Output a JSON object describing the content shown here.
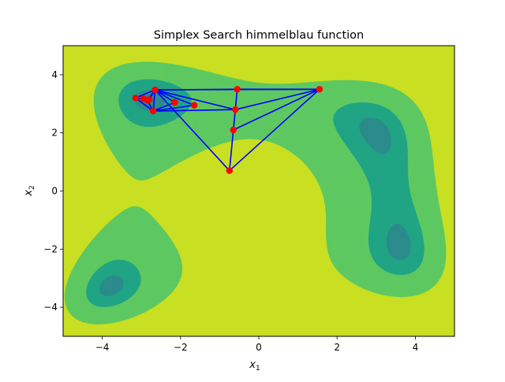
{
  "chart_data": {
    "type": "contour",
    "title": "Simplex Search himmelblau function",
    "xlabel": "x",
    "xlabel_sub": "1",
    "ylabel": "x",
    "ylabel_sub": "2",
    "xlim": [
      -5,
      5
    ],
    "ylim": [
      -5,
      5
    ],
    "xticks": [
      -4,
      -2,
      0,
      2,
      4
    ],
    "yticks": [
      -4,
      -2,
      0,
      2,
      4
    ],
    "grid": false,
    "colors": {
      "background_level": "#c8df22",
      "level_1": "#5ec962",
      "level_2": "#21a585",
      "level_3": "#2c8c8c",
      "path": "#0000ff",
      "points": "#ff0000"
    },
    "simplex_points": [
      {
        "x": 1.55,
        "y": 3.5
      },
      {
        "x": -0.55,
        "y": 3.5
      },
      {
        "x": -0.6,
        "y": 2.8
      },
      {
        "x": -0.65,
        "y": 2.1
      },
      {
        "x": -0.75,
        "y": 0.7
      },
      {
        "x": -2.65,
        "y": 3.48
      },
      {
        "x": -2.7,
        "y": 2.75
      },
      {
        "x": -1.65,
        "y": 2.95
      },
      {
        "x": -2.15,
        "y": 3.05
      },
      {
        "x": -3.15,
        "y": 3.2
      },
      {
        "x": -2.95,
        "y": 3.18
      },
      {
        "x": -2.85,
        "y": 3.12
      },
      {
        "x": -2.8,
        "y": 3.15
      }
    ],
    "simplex_edges": [
      [
        0,
        1
      ],
      [
        1,
        2
      ],
      [
        0,
        2
      ],
      [
        0,
        5
      ],
      [
        5,
        1
      ],
      [
        5,
        2
      ],
      [
        2,
        3
      ],
      [
        0,
        3
      ],
      [
        3,
        4
      ],
      [
        4,
        5
      ],
      [
        4,
        0
      ],
      [
        5,
        6
      ],
      [
        6,
        7
      ],
      [
        7,
        5
      ],
      [
        6,
        2
      ],
      [
        5,
        8
      ],
      [
        8,
        6
      ],
      [
        5,
        9
      ],
      [
        9,
        6
      ],
      [
        9,
        10
      ],
      [
        10,
        11
      ],
      [
        11,
        5
      ],
      [
        11,
        6
      ],
      [
        10,
        12
      ],
      [
        12,
        5
      ]
    ]
  }
}
